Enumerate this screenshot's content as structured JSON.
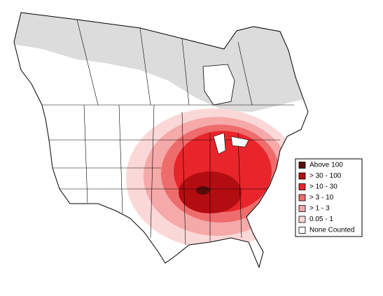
{
  "legend": {
    "items": [
      {
        "label": "Above 100",
        "color": "#5a0a0a"
      },
      {
        "label": "> 30 - 100",
        "color": "#b30d12"
      },
      {
        "label": "> 10 - 30",
        "color": "#e8252b"
      },
      {
        "label": "> 3 - 10",
        "color": "#ef6c6c"
      },
      {
        "label": "> 1 - 3",
        "color": "#f5a9a9"
      },
      {
        "label": "0.05 - 1",
        "color": "#fbd8d8"
      },
      {
        "label": "None Counted",
        "color": "#ffffff"
      }
    ]
  }
}
